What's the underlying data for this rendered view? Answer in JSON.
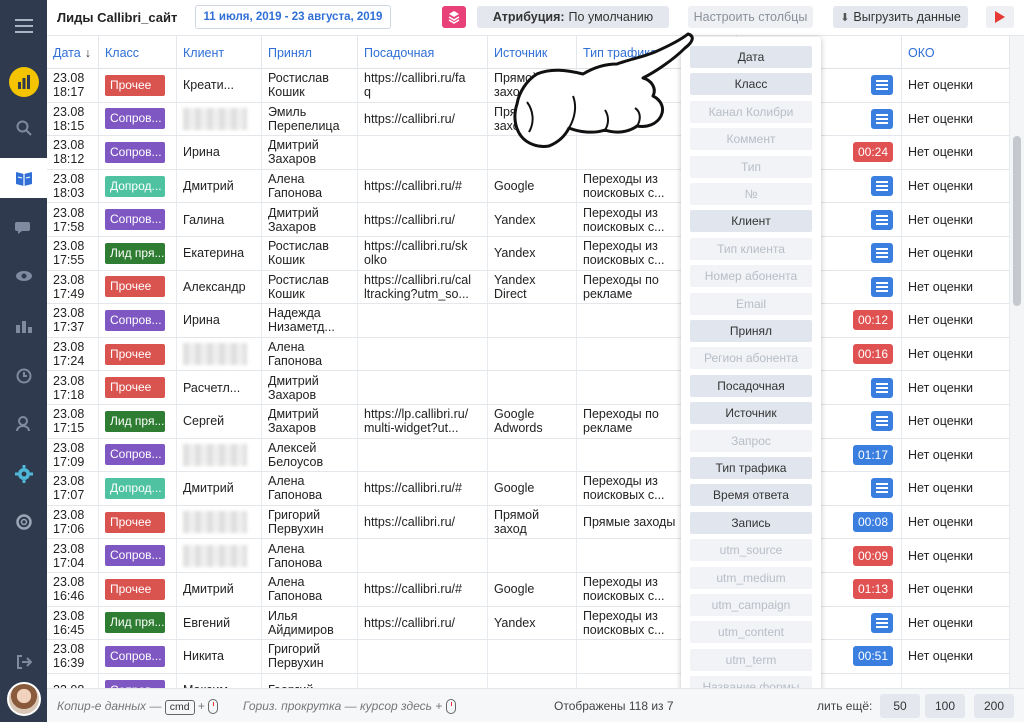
{
  "header": {
    "title": "Лиды Callibri_сайт",
    "date_range": "11 июля, 2019 - 23 августа, 2019",
    "attribution_label": "Атрибуция:",
    "attribution_value": "По умолчанию",
    "columns_button": "Настроить столбцы",
    "export_button": "Выгрузить данные"
  },
  "columns": [
    "Дата",
    "Класс",
    "Клиент",
    "Принял",
    "Посадочная",
    "Источник",
    "Тип трафика",
    "Запись",
    "ОКО"
  ],
  "sort_indicator": "↓",
  "colors": {
    "Прочее": "#d9534f",
    "Сопров...": "#7e57c2",
    "Допрод...": "#4fc3a1",
    "Лид пря...": "#2e7d32",
    "duration_red": "#e05252",
    "duration_blue": "#3a7fe0",
    "accent": "#2f6fd6"
  },
  "rows": [
    {
      "date": "23.08",
      "time": "18:17",
      "class": "Прочее",
      "client": "Креати...",
      "accepted": [
        "Ростислав",
        "Кошик"
      ],
      "landing": [
        "https://callibri.ru/fa",
        "q"
      ],
      "source": [
        "Прямой",
        "заход"
      ],
      "traffic": [
        "",
        ""
      ],
      "record": {
        "type": "note"
      },
      "oko": "Нет оценки"
    },
    {
      "date": "23.08",
      "time": "18:15",
      "class": "Сопров...",
      "client": "",
      "accepted": [
        "Эмиль",
        "Перепелица"
      ],
      "landing": [
        "https://callibri.ru/",
        ""
      ],
      "source": [
        "Прямой",
        "захо"
      ],
      "traffic": [
        "Прямые",
        ""
      ],
      "record": {
        "type": "note"
      },
      "oko": "Нет оценки"
    },
    {
      "date": "23.08",
      "time": "18:12",
      "class": "Сопров...",
      "client": "Ирина",
      "accepted": [
        "Дмитрий",
        "Захаров"
      ],
      "landing": [
        "",
        ""
      ],
      "source": [
        "",
        ""
      ],
      "traffic": [
        "",
        ""
      ],
      "record": {
        "type": "duration",
        "value": "00:24",
        "color": "red"
      },
      "oko": "Нет оценки"
    },
    {
      "date": "23.08",
      "time": "18:03",
      "class": "Допрод...",
      "client": "Дмитрий",
      "accepted": [
        "Алена",
        "Гапонова"
      ],
      "landing": [
        "https://callibri.ru/#",
        ""
      ],
      "source": [
        "Google",
        ""
      ],
      "traffic": [
        "Переходы из",
        "поисковых с..."
      ],
      "record": {
        "type": "note"
      },
      "oko": "Нет оценки"
    },
    {
      "date": "23.08",
      "time": "17:58",
      "class": "Сопров...",
      "client": "Галина",
      "accepted": [
        "Дмитрий",
        "Захаров"
      ],
      "landing": [
        "https://callibri.ru/",
        ""
      ],
      "source": [
        "Yandex",
        ""
      ],
      "traffic": [
        "Переходы из",
        "поисковых с..."
      ],
      "record": {
        "type": "note"
      },
      "oko": "Нет оценки"
    },
    {
      "date": "23.08",
      "time": "17:55",
      "class": "Лид пря...",
      "client": "Екатерина",
      "accepted": [
        "Ростислав",
        "Кошик"
      ],
      "landing": [
        "https://callibri.ru/sk",
        "olko"
      ],
      "source": [
        "Yandex",
        ""
      ],
      "traffic": [
        "Переходы из",
        "поисковых с..."
      ],
      "record": {
        "type": "note"
      },
      "oko": "Нет оценки"
    },
    {
      "date": "23.08",
      "time": "17:49",
      "class": "Прочее",
      "client": "Александр",
      "accepted": [
        "Ростислав",
        "Кошик"
      ],
      "landing": [
        "https://callibri.ru/cal",
        "ltracking?utm_so..."
      ],
      "source": [
        "Yandex",
        "Direct"
      ],
      "traffic": [
        "Переходы по",
        "рекламе"
      ],
      "record": {
        "type": "note"
      },
      "oko": "Нет оценки"
    },
    {
      "date": "23.08",
      "time": "17:37",
      "class": "Сопров...",
      "client": "Ирина",
      "accepted": [
        "Надежда",
        "Низаметд..."
      ],
      "landing": [
        "",
        ""
      ],
      "source": [
        "",
        ""
      ],
      "traffic": [
        "",
        ""
      ],
      "record": {
        "type": "duration",
        "value": "00:12",
        "color": "red"
      },
      "oko": "Нет оценки"
    },
    {
      "date": "23.08",
      "time": "17:24",
      "class": "Прочее",
      "client": "",
      "accepted": [
        "Алена",
        "Гапонова"
      ],
      "landing": [
        "",
        ""
      ],
      "source": [
        "",
        ""
      ],
      "traffic": [
        "",
        ""
      ],
      "record": {
        "type": "duration",
        "value": "00:16",
        "color": "red"
      },
      "oko": "Нет оценки"
    },
    {
      "date": "23.08",
      "time": "17:18",
      "class": "Прочее",
      "client": "Расчетл...",
      "accepted": [
        "Дмитрий",
        "Захаров"
      ],
      "landing": [
        "",
        ""
      ],
      "source": [
        "",
        ""
      ],
      "traffic": [
        "",
        ""
      ],
      "record": {
        "type": "note"
      },
      "oko": "Нет оценки"
    },
    {
      "date": "23.08",
      "time": "17:15",
      "class": "Лид пря...",
      "client": "Сергей",
      "accepted": [
        "Дмитрий",
        "Захаров"
      ],
      "landing": [
        "https://lp.callibri.ru/",
        "multi-widget?ut..."
      ],
      "source": [
        "Google",
        "Adwords"
      ],
      "traffic": [
        "Переходы по",
        "рекламе"
      ],
      "record": {
        "type": "note"
      },
      "oko": "Нет оценки"
    },
    {
      "date": "23.08",
      "time": "17:09",
      "class": "Сопров...",
      "client": "",
      "accepted": [
        "Алексей",
        "Белоусов"
      ],
      "landing": [
        "",
        ""
      ],
      "source": [
        "",
        ""
      ],
      "traffic": [
        "",
        ""
      ],
      "record": {
        "type": "duration",
        "value": "01:17",
        "color": "blue"
      },
      "oko": "Нет оценки"
    },
    {
      "date": "23.08",
      "time": "17:07",
      "class": "Допрод...",
      "client": "Дмитрий",
      "accepted": [
        "Алена",
        "Гапонова"
      ],
      "landing": [
        "https://callibri.ru/#",
        ""
      ],
      "source": [
        "Google",
        ""
      ],
      "traffic": [
        "Переходы из",
        "поисковых с..."
      ],
      "record": {
        "type": "note"
      },
      "oko": "Нет оценки"
    },
    {
      "date": "23.08",
      "time": "17:06",
      "class": "Прочее",
      "client": "",
      "accepted": [
        "Григорий",
        "Первухин"
      ],
      "landing": [
        "https://callibri.ru/",
        ""
      ],
      "source": [
        "Прямой",
        "заход"
      ],
      "traffic": [
        "Прямые заходы",
        ""
      ],
      "record": {
        "type": "duration",
        "value": "00:08",
        "color": "blue"
      },
      "oko": "Нет оценки"
    },
    {
      "date": "23.08",
      "time": "17:04",
      "class": "Сопров...",
      "client": "",
      "accepted": [
        "Алена",
        "Гапонова"
      ],
      "landing": [
        "",
        ""
      ],
      "source": [
        "",
        ""
      ],
      "traffic": [
        "",
        ""
      ],
      "record": {
        "type": "duration",
        "value": "00:09",
        "color": "red"
      },
      "oko": "Нет оценки"
    },
    {
      "date": "23.08",
      "time": "16:46",
      "class": "Прочее",
      "client": "Дмитрий",
      "accepted": [
        "Алена",
        "Гапонова"
      ],
      "landing": [
        "https://callibri.ru/#",
        ""
      ],
      "source": [
        "Google",
        ""
      ],
      "traffic": [
        "Переходы из",
        "поисковых с..."
      ],
      "record": {
        "type": "duration",
        "value": "01:13",
        "color": "red"
      },
      "oko": "Нет оценки"
    },
    {
      "date": "23.08",
      "time": "16:45",
      "class": "Лид пря...",
      "client": "Евгений",
      "accepted": [
        "Илья",
        "Айдимиров"
      ],
      "landing": [
        "https://callibri.ru/",
        ""
      ],
      "source": [
        "Yandex",
        ""
      ],
      "traffic": [
        "Переходы из",
        "поисковых с..."
      ],
      "record": {
        "type": "note"
      },
      "oko": "Нет оценки"
    },
    {
      "date": "23.08",
      "time": "16:39",
      "class": "Сопров...",
      "client": "Никита",
      "accepted": [
        "Григорий",
        "Первухин"
      ],
      "landing": [
        "",
        ""
      ],
      "source": [
        "",
        ""
      ],
      "traffic": [
        "",
        ""
      ],
      "record": {
        "type": "duration",
        "value": "00:51",
        "color": "blue"
      },
      "oko": "Нет оценки"
    },
    {
      "date": "23.08",
      "time": "",
      "class": "Сопров...",
      "client": "Максим",
      "accepted": [
        "Георгий",
        ""
      ],
      "landing": [
        "",
        ""
      ],
      "source": [
        "",
        ""
      ],
      "traffic": [
        "",
        ""
      ],
      "record": {
        "type": "none"
      },
      "oko": ""
    }
  ],
  "column_menu": [
    {
      "label": "Дата",
      "enabled": true
    },
    {
      "label": "Класс",
      "enabled": true
    },
    {
      "label": "Канал Колибри",
      "enabled": false
    },
    {
      "label": "Коммент",
      "enabled": false
    },
    {
      "label": "Тип",
      "enabled": false
    },
    {
      "label": "№",
      "enabled": false
    },
    {
      "label": "Клиент",
      "enabled": true
    },
    {
      "label": "Тип клиента",
      "enabled": false
    },
    {
      "label": "Номер абонента",
      "enabled": false
    },
    {
      "label": "Email",
      "enabled": false
    },
    {
      "label": "Принял",
      "enabled": true
    },
    {
      "label": "Регион абонента",
      "enabled": false
    },
    {
      "label": "Посадочная",
      "enabled": true
    },
    {
      "label": "Источник",
      "enabled": true
    },
    {
      "label": "Запрос",
      "enabled": false
    },
    {
      "label": "Тип трафика",
      "enabled": true
    },
    {
      "label": "Время ответа",
      "enabled": true
    },
    {
      "label": "Запись",
      "enabled": true
    },
    {
      "label": "utm_source",
      "enabled": false
    },
    {
      "label": "utm_medium",
      "enabled": false
    },
    {
      "label": "utm_campaign",
      "enabled": false
    },
    {
      "label": "utm_content",
      "enabled": false
    },
    {
      "label": "utm_term",
      "enabled": false
    },
    {
      "label": "Название формы",
      "enabled": false
    }
  ],
  "footer": {
    "copy_hint": "Копир-е данных —",
    "copy_key": "cmd",
    "scroll_hint": "Гориз. прокрутка — курсор здесь +",
    "shown": "Отображены 118 из 7",
    "show_more": "лить ещё:",
    "page_sizes": [
      "50",
      "100",
      "200"
    ]
  }
}
